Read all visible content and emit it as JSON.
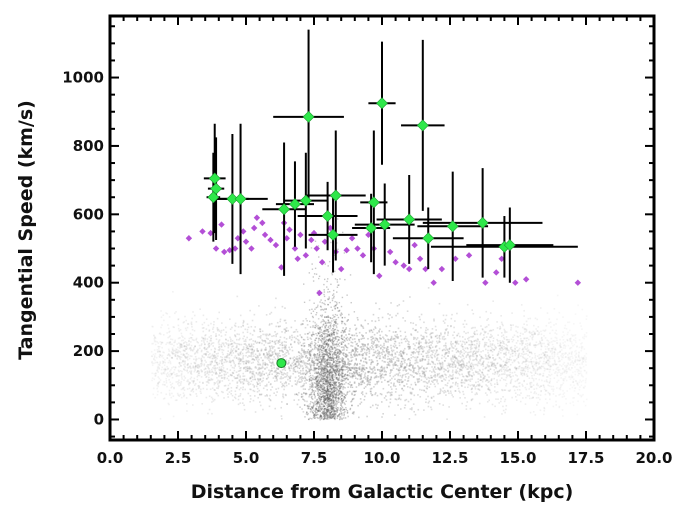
{
  "chart_data": {
    "type": "scatter",
    "title": "",
    "xlabel": "Distance from Galactic Center (kpc)",
    "ylabel": "Tangential Speed (km/s)",
    "xlim": [
      0,
      20
    ],
    "ylim": [
      -60,
      1180
    ],
    "x_ticks": [
      "0.0",
      "2.5",
      "5.0",
      "7.5",
      "10.0",
      "12.5",
      "15.0",
      "17.5",
      "20.0"
    ],
    "x_tick_values": [
      0,
      2.5,
      5,
      7.5,
      10,
      12.5,
      15,
      17.5,
      20
    ],
    "y_ticks": [
      "0",
      "200",
      "400",
      "600",
      "800",
      "1000"
    ],
    "y_tick_values": [
      0,
      200,
      400,
      600,
      800,
      1000
    ],
    "grid": false,
    "legend": "none",
    "background_population": {
      "description_color": "#9a9a9a",
      "x_range": [
        1.5,
        17.5
      ],
      "core_velocity": 170,
      "velocity_spread": 60,
      "dense_ridge_x": 8.0
    },
    "series": [
      {
        "marker": "diamond",
        "color": "#b34fd6",
        "points": [
          [
            2.9,
            530
          ],
          [
            3.4,
            550
          ],
          [
            3.7,
            545
          ],
          [
            3.9,
            500
          ],
          [
            4.1,
            570
          ],
          [
            4.2,
            490
          ],
          [
            4.4,
            495
          ],
          [
            4.6,
            500
          ],
          [
            4.7,
            530
          ],
          [
            4.9,
            550
          ],
          [
            5.0,
            520
          ],
          [
            5.2,
            500
          ],
          [
            5.3,
            560
          ],
          [
            5.4,
            590
          ],
          [
            5.6,
            575
          ],
          [
            5.7,
            540
          ],
          [
            5.9,
            525
          ],
          [
            6.1,
            510
          ],
          [
            6.3,
            445
          ],
          [
            6.4,
            575
          ],
          [
            6.5,
            530
          ],
          [
            6.6,
            555
          ],
          [
            6.8,
            500
          ],
          [
            6.9,
            470
          ],
          [
            7.0,
            540
          ],
          [
            7.2,
            480
          ],
          [
            7.4,
            525
          ],
          [
            7.5,
            545
          ],
          [
            7.6,
            500
          ],
          [
            7.7,
            370
          ],
          [
            7.8,
            460
          ],
          [
            7.9,
            520
          ],
          [
            8.1,
            560
          ],
          [
            8.3,
            490
          ],
          [
            8.5,
            440
          ],
          [
            8.7,
            495
          ],
          [
            8.9,
            530
          ],
          [
            9.1,
            500
          ],
          [
            9.3,
            480
          ],
          [
            9.5,
            540
          ],
          [
            9.7,
            500
          ],
          [
            9.9,
            420
          ],
          [
            10.1,
            560
          ],
          [
            10.3,
            490
          ],
          [
            10.5,
            460
          ],
          [
            10.8,
            450
          ],
          [
            11.0,
            440
          ],
          [
            11.2,
            510
          ],
          [
            11.4,
            470
          ],
          [
            11.6,
            440
          ],
          [
            11.9,
            400
          ],
          [
            12.2,
            440
          ],
          [
            12.7,
            470
          ],
          [
            13.2,
            480
          ],
          [
            13.8,
            400
          ],
          [
            14.2,
            430
          ],
          [
            14.4,
            470
          ],
          [
            14.9,
            400
          ],
          [
            15.3,
            410
          ],
          [
            17.2,
            400
          ]
        ]
      },
      {
        "marker": "diamond",
        "color": "#2ee84a",
        "points": [
          {
            "x": 3.8,
            "y": 650,
            "xerr": 0.25,
            "yerr": 130
          },
          {
            "x": 3.85,
            "y": 705,
            "xerr": 0.4,
            "yerr": 160
          },
          {
            "x": 3.9,
            "y": 675,
            "xerr": 0.3,
            "yerr": 150
          },
          {
            "x": 4.5,
            "y": 645,
            "xerr": 0.6,
            "yerr": 190
          },
          {
            "x": 4.8,
            "y": 645,
            "xerr": 1.0,
            "yerr": 220
          },
          {
            "x": 6.4,
            "y": 615,
            "xerr": 0.8,
            "yerr": 195
          },
          {
            "x": 6.8,
            "y": 630,
            "xerr": 0.7,
            "yerr": 125
          },
          {
            "x": 7.2,
            "y": 640,
            "xerr": 0.8,
            "yerr": 140
          },
          {
            "x": 7.3,
            "y": 885,
            "xerr": 1.3,
            "yerr": 255
          },
          {
            "x": 8.0,
            "y": 595,
            "xerr": 1.1,
            "yerr": 100
          },
          {
            "x": 8.2,
            "y": 540,
            "xerr": 0.9,
            "yerr": 110
          },
          {
            "x": 8.3,
            "y": 655,
            "xerr": 1.1,
            "yerr": 190
          },
          {
            "x": 9.6,
            "y": 560,
            "xerr": 0.7,
            "yerr": 100
          },
          {
            "x": 9.7,
            "y": 635,
            "xerr": 0.5,
            "yerr": 210
          },
          {
            "x": 10.0,
            "y": 925,
            "xerr": 0.5,
            "yerr": 180
          },
          {
            "x": 10.1,
            "y": 570,
            "xerr": 1.1,
            "yerr": 120
          },
          {
            "x": 11.0,
            "y": 585,
            "xerr": 1.2,
            "yerr": 130
          },
          {
            "x": 11.5,
            "y": 860,
            "xerr": 0.8,
            "yerr": 250
          },
          {
            "x": 11.7,
            "y": 530,
            "xerr": 1.3,
            "yerr": 90
          },
          {
            "x": 12.6,
            "y": 565,
            "xerr": 1.3,
            "yerr": 160
          },
          {
            "x": 13.7,
            "y": 575,
            "xerr": 2.2,
            "yerr": 160
          },
          {
            "x": 14.5,
            "y": 505,
            "xerr": 2.7,
            "yerr": 90
          },
          {
            "x": 14.7,
            "y": 510,
            "xerr": 1.6,
            "yerr": 110
          }
        ]
      },
      {
        "marker": "circle",
        "color": "#2ee84a",
        "points": [
          [
            6.3,
            165
          ]
        ]
      }
    ]
  }
}
